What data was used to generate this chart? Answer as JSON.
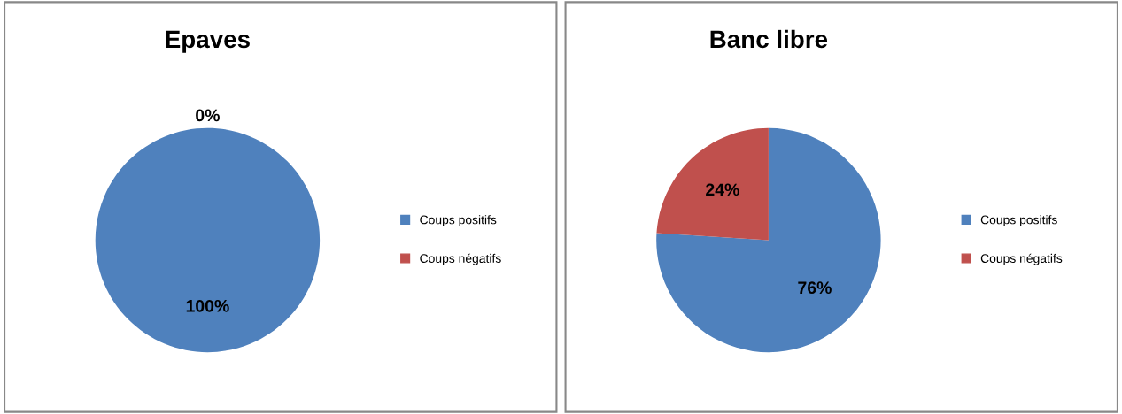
{
  "chart_data": [
    {
      "type": "pie",
      "title": "Epaves",
      "categories": [
        "Coups positifs",
        "Coups négatifs"
      ],
      "values": [
        100,
        0
      ],
      "colors": [
        "#4f81bd",
        "#c0504d"
      ],
      "value_labels": [
        "100%",
        "0%"
      ],
      "legend": "right"
    },
    {
      "type": "pie",
      "title": "Banc libre",
      "categories": [
        "Coups positifs",
        "Coups négatifs"
      ],
      "values": [
        76,
        24
      ],
      "colors": [
        "#4f81bd",
        "#c0504d"
      ],
      "value_labels": [
        "76%",
        "24%"
      ],
      "legend": "right"
    }
  ]
}
